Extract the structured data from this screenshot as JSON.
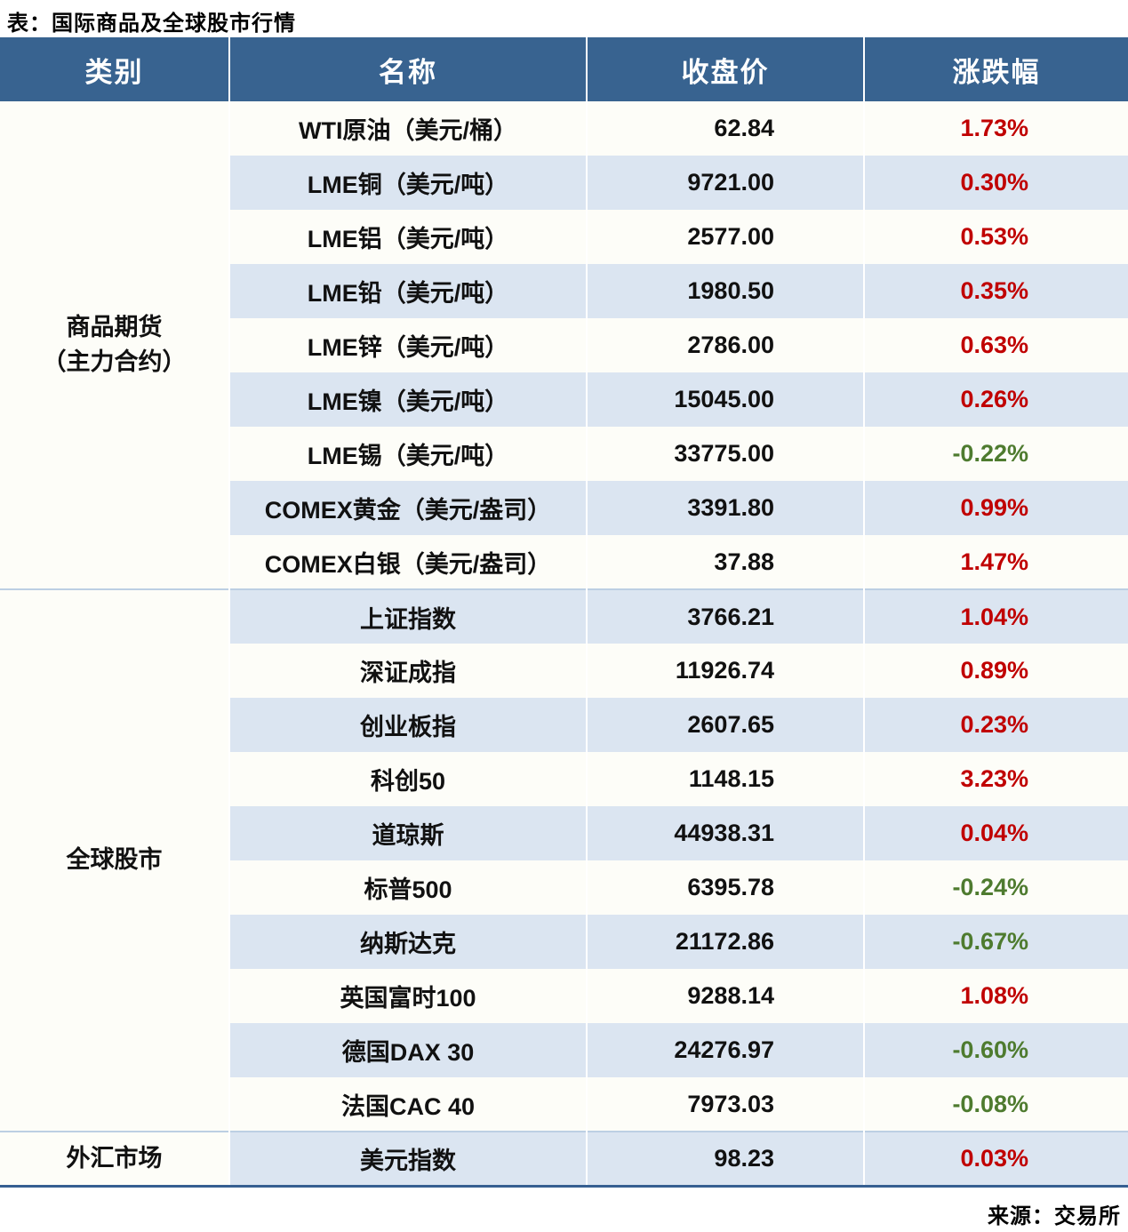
{
  "title": "表：国际商品及全球股市行情",
  "source": "来源：交易所",
  "columns": [
    "类别",
    "名称",
    "收盘价",
    "涨跌幅"
  ],
  "colors": {
    "header_bg": "#386390",
    "row_alt_bg": "#dbe5f1",
    "up_red": "#c00000",
    "down_green": "#4e7b2f",
    "table_bottom_border": "#365f91"
  },
  "groups": [
    {
      "category_lines": [
        "商品期货",
        "（主力合约）"
      ],
      "rows": [
        {
          "name": "WTI原油（美元/桶）",
          "close": "62.84",
          "change": "1.73%",
          "trend": "up"
        },
        {
          "name": "LME铜（美元/吨）",
          "close": "9721.00",
          "change": "0.30%",
          "trend": "up"
        },
        {
          "name": "LME铝（美元/吨）",
          "close": "2577.00",
          "change": "0.53%",
          "trend": "up"
        },
        {
          "name": "LME铅（美元/吨）",
          "close": "1980.50",
          "change": "0.35%",
          "trend": "up"
        },
        {
          "name": "LME锌（美元/吨）",
          "close": "2786.00",
          "change": "0.63%",
          "trend": "up"
        },
        {
          "name": "LME镍（美元/吨）",
          "close": "15045.00",
          "change": "0.26%",
          "trend": "up"
        },
        {
          "name": "LME锡（美元/吨）",
          "close": "33775.00",
          "change": "-0.22%",
          "trend": "down"
        },
        {
          "name": "COMEX黄金（美元/盎司）",
          "close": "3391.80",
          "change": "0.99%",
          "trend": "up"
        },
        {
          "name": "COMEX白银（美元/盎司）",
          "close": "37.88",
          "change": "1.47%",
          "trend": "up"
        }
      ]
    },
    {
      "category_lines": [
        "全球股市"
      ],
      "rows": [
        {
          "name": "上证指数",
          "close": "3766.21",
          "change": "1.04%",
          "trend": "up"
        },
        {
          "name": "深证成指",
          "close": "11926.74",
          "change": "0.89%",
          "trend": "up"
        },
        {
          "name": "创业板指",
          "close": "2607.65",
          "change": "0.23%",
          "trend": "up"
        },
        {
          "name": "科创50",
          "close": "1148.15",
          "change": "3.23%",
          "trend": "up"
        },
        {
          "name": "道琼斯",
          "close": "44938.31",
          "change": "0.04%",
          "trend": "up"
        },
        {
          "name": "标普500",
          "close": "6395.78",
          "change": "-0.24%",
          "trend": "down"
        },
        {
          "name": "纳斯达克",
          "close": "21172.86",
          "change": "-0.67%",
          "trend": "down"
        },
        {
          "name": "英国富时100",
          "close": "9288.14",
          "change": "1.08%",
          "trend": "up"
        },
        {
          "name": "德国DAX 30",
          "close": "24276.97",
          "change": "-0.60%",
          "trend": "down"
        },
        {
          "name": "法国CAC 40",
          "close": "7973.03",
          "change": "-0.08%",
          "trend": "down"
        }
      ]
    },
    {
      "category_lines": [
        "外汇市场"
      ],
      "rows": [
        {
          "name": "美元指数",
          "close": "98.23",
          "change": "0.03%",
          "trend": "up"
        }
      ]
    }
  ]
}
